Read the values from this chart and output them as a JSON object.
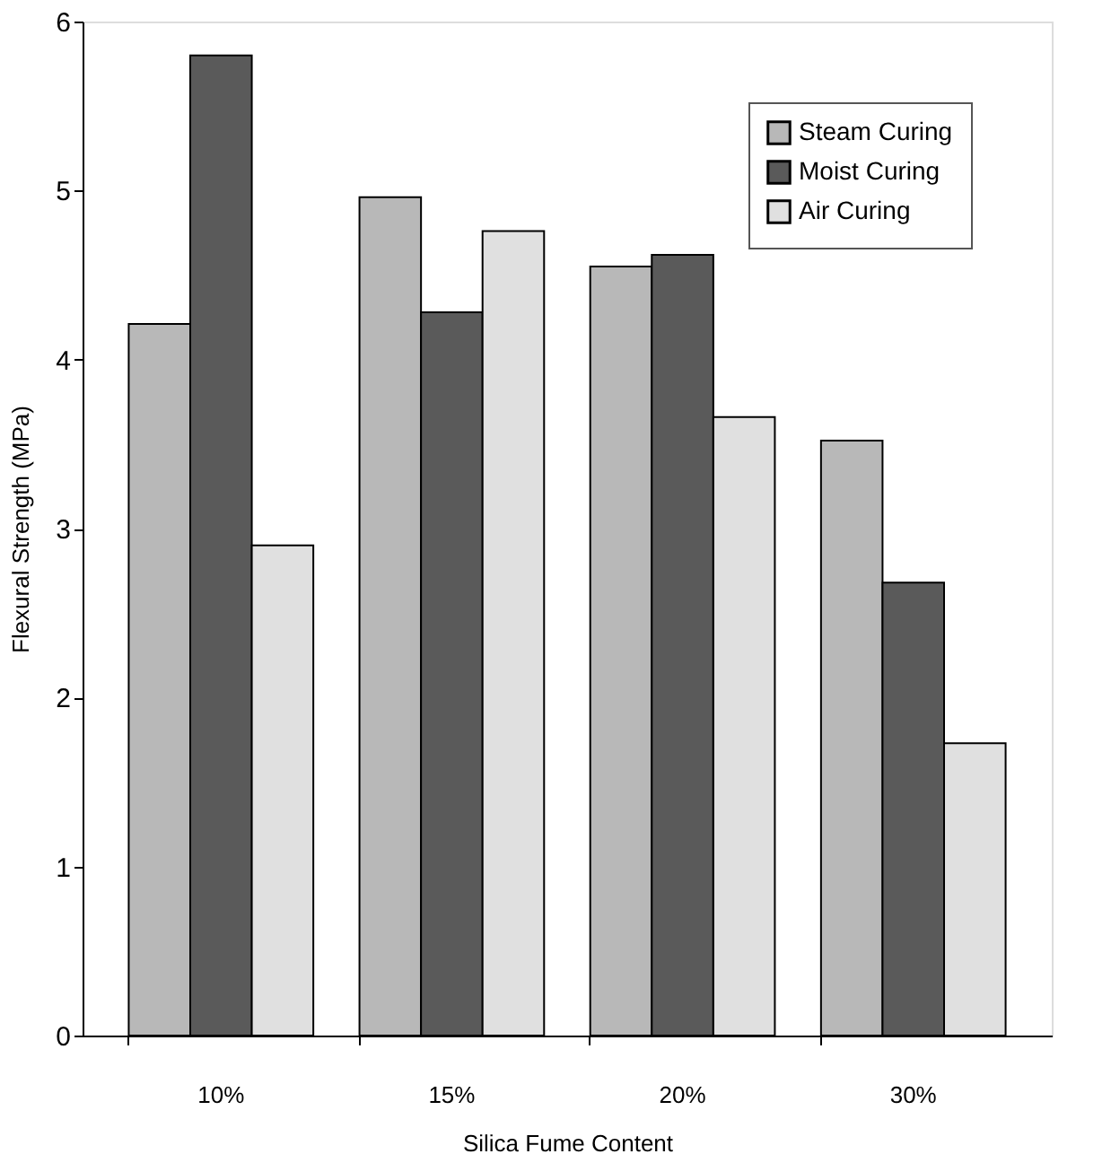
{
  "chart_data": {
    "type": "bar",
    "xlabel": "Silica Fume Content",
    "ylabel": "Flexural Strength (MPa)",
    "categories": [
      "10%",
      "15%",
      "20%",
      "30%"
    ],
    "series": [
      {
        "name": "Steam Curing",
        "color": "#b8b8b8",
        "values": [
          4.21,
          4.96,
          4.55,
          3.52
        ]
      },
      {
        "name": "Moist Curing",
        "color": "#5a5a5a",
        "values": [
          5.8,
          4.28,
          4.62,
          2.68
        ]
      },
      {
        "name": "Air Curing",
        "color": "#e0e0e0",
        "values": [
          2.9,
          4.76,
          3.66,
          1.73
        ]
      }
    ],
    "ylim": [
      0,
      6
    ],
    "yticks": [
      0,
      1,
      2,
      3,
      4,
      5,
      6
    ],
    "grid": false,
    "legend": "top right"
  }
}
